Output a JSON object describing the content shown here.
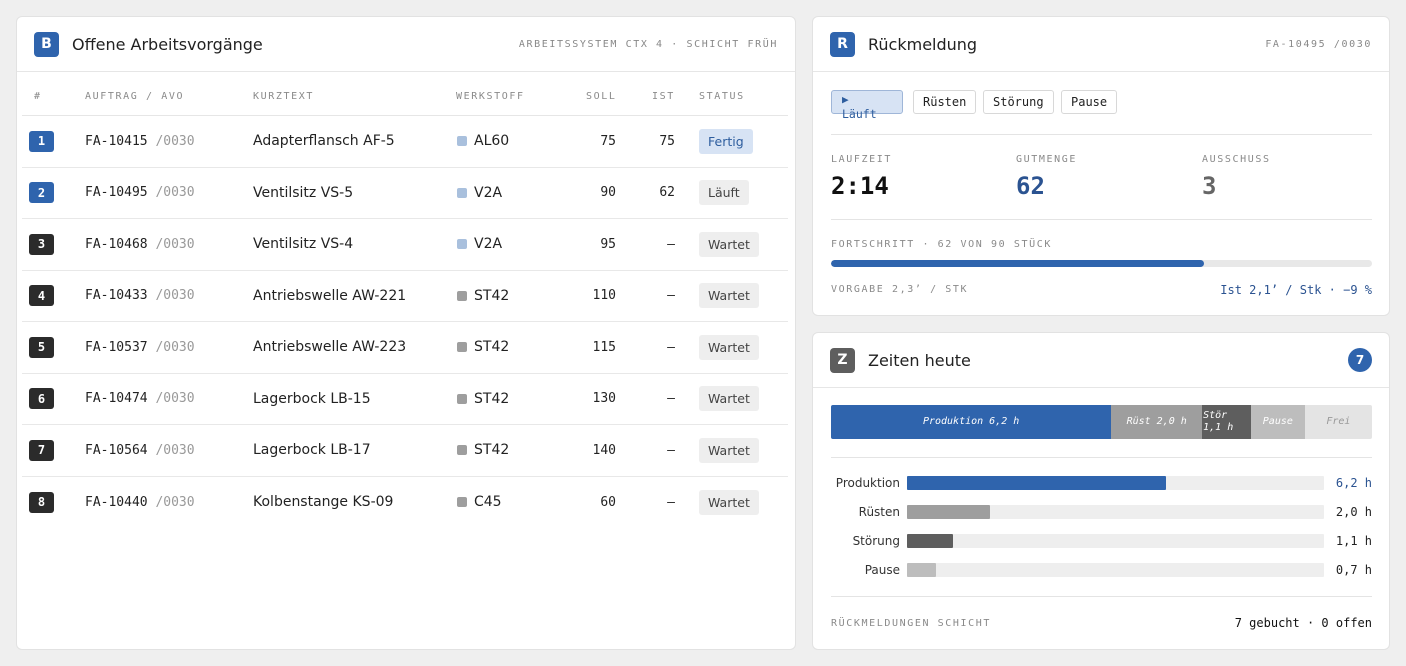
{
  "left": {
    "badge": "B",
    "title": "Offene Arbeitsvorgänge",
    "meta": "ARBEITSSYSTEM CTX 4 · SCHICHT FRÜH",
    "headers": {
      "num": "#",
      "order": "AUFTRAG / AVO",
      "text": "KURZTEXT",
      "material": "WERKSTOFF",
      "soll": "SOLL",
      "ist": "IST",
      "status": "STATUS"
    },
    "rows": [
      {
        "num": "1",
        "order": "FA-10415",
        "avo": "/0030",
        "text": "Adapterflansch AF-5",
        "material": "AL60",
        "soll": "75",
        "ist": "75",
        "status": "Fertig"
      },
      {
        "num": "2",
        "order": "FA-10495",
        "avo": "/0030",
        "text": "Ventilsitz VS-5",
        "material": "V2A",
        "soll": "90",
        "ist": "62",
        "status": "Läuft"
      },
      {
        "num": "3",
        "order": "FA-10468",
        "avo": "/0030",
        "text": "Ventilsitz VS-4",
        "material": "V2A",
        "soll": "95",
        "ist": "–",
        "status": "Wartet"
      },
      {
        "num": "4",
        "order": "FA-10433",
        "avo": "/0030",
        "text": "Antriebswelle AW-221",
        "material": "ST42",
        "soll": "110",
        "ist": "–",
        "status": "Wartet"
      },
      {
        "num": "5",
        "order": "FA-10537",
        "avo": "/0030",
        "text": "Antriebswelle AW-223",
        "material": "ST42",
        "soll": "115",
        "ist": "–",
        "status": "Wartet"
      },
      {
        "num": "6",
        "order": "FA-10474",
        "avo": "/0030",
        "text": "Lagerbock LB-15",
        "material": "ST42",
        "soll": "130",
        "ist": "–",
        "status": "Wartet"
      },
      {
        "num": "7",
        "order": "FA-10564",
        "avo": "/0030",
        "text": "Lagerbock LB-17",
        "material": "ST42",
        "soll": "140",
        "ist": "–",
        "status": "Wartet"
      },
      {
        "num": "8",
        "order": "FA-10440",
        "avo": "/0030",
        "text": "Kolbenstange KS-09",
        "material": "C45",
        "soll": "60",
        "ist": "–",
        "status": "Wartet"
      }
    ]
  },
  "feedback": {
    "badge": "R",
    "title": "Rückmeldung",
    "meta": "FA-10495 /0030",
    "buttons": {
      "running": "Läuft",
      "setup": "Rüsten",
      "fault": "Störung",
      "pause": "Pause"
    },
    "play_icon": "play-icon",
    "kpis": {
      "runtime_label": "LAUFZEIT",
      "runtime": "2:14",
      "good_label": "GUTMENGE",
      "good": "62",
      "scrap_label": "AUSSCHUSS",
      "scrap": "3"
    },
    "progress_label": "FORTSCHRITT · 62 VON 90 STÜCK",
    "progress_fraction": 0.689,
    "target": "VORGABE 2,3’ / STK",
    "actual": "Ist 2,1’ / Stk · −9 %"
  },
  "times": {
    "badge": "Z",
    "title": "Zeiten heute",
    "count": "7",
    "stack": [
      {
        "label": "Produktion 6,2 h",
        "fraction": 0.518
      },
      {
        "label": "Rüst 2,0 h",
        "fraction": 0.168
      },
      {
        "label": "Stör 1,1 h",
        "fraction": 0.09
      },
      {
        "label": "Pause",
        "fraction": 0.1
      },
      {
        "label": "Frei",
        "fraction": 0.124
      }
    ],
    "rows": [
      {
        "label": "Produktion",
        "value": "6,2 h",
        "fraction": 0.62
      },
      {
        "label": "Rüsten",
        "value": "2,0 h",
        "fraction": 0.2
      },
      {
        "label": "Störung",
        "value": "1,1 h",
        "fraction": 0.11
      },
      {
        "label": "Pause",
        "value": "0,7 h",
        "fraction": 0.07
      }
    ],
    "footer_label": "RÜCKMELDUNGEN SCHICHT",
    "footer_value": "7 gebucht · 0 offen"
  },
  "colors": {
    "blue": "#2f64ad",
    "dark": "#2b2b2b",
    "gray": "#9e9e9e",
    "darkgray": "#5e5e5e",
    "lightgray": "#bdbdbd",
    "free": "#e4e4e4"
  }
}
